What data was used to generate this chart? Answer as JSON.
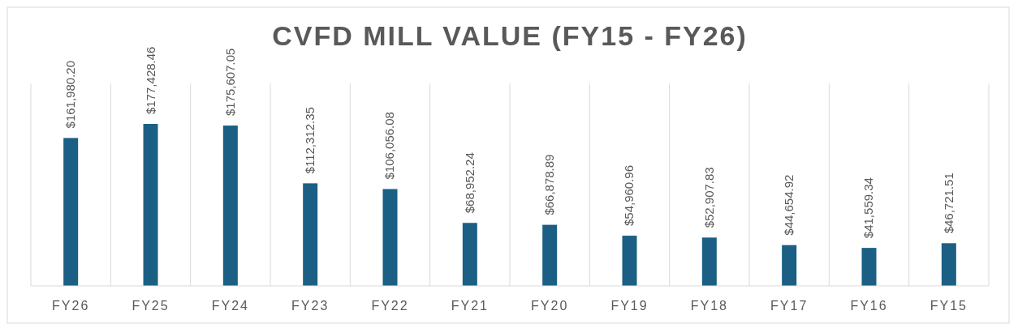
{
  "chart_data": {
    "type": "bar",
    "title": "CVFD MILL VALUE (FY15 - FY26)",
    "categories": [
      "FY26",
      "FY25",
      "FY24",
      "FY23",
      "FY22",
      "FY21",
      "FY20",
      "FY19",
      "FY18",
      "FY17",
      "FY16",
      "FY15"
    ],
    "values": [
      161980.2,
      177428.46,
      175607.05,
      112312.35,
      106056.08,
      68952.24,
      66878.89,
      54960.96,
      52907.83,
      44654.92,
      41559.34,
      46721.51
    ],
    "value_labels": [
      "$161,980.20",
      "$177,428.46",
      "$175,607.05",
      "$112,312.35",
      "$106,056.08",
      "$68,952.24",
      "$66,878.89",
      "$54,960.96",
      "$52,907.83",
      "$44,654.92",
      "$41,559.34",
      "$46,721.51"
    ],
    "color": "#1b5f85",
    "grid": "x"
  }
}
